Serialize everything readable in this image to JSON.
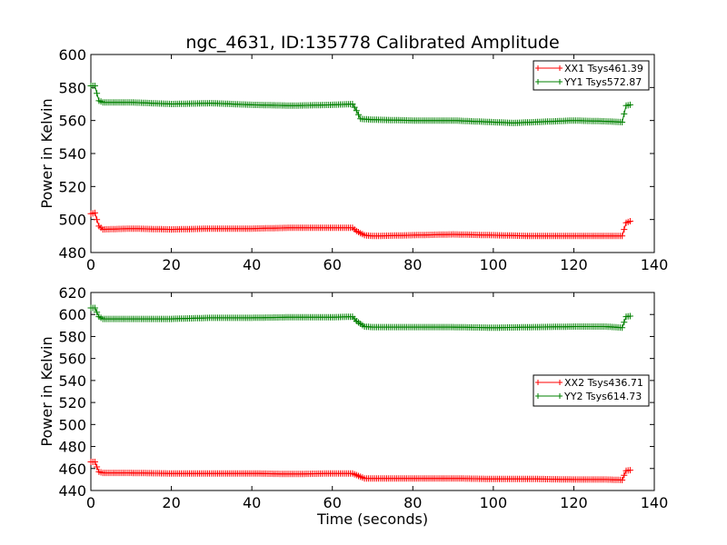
{
  "figure": {
    "title": "ngc_4631, ID:135778 Calibrated Amplitude",
    "xlabel": "Time (seconds)"
  },
  "colors": {
    "xx": "#ff0000",
    "yy": "#008000",
    "axis": "#000000"
  },
  "chart_data": [
    {
      "type": "line",
      "ylabel": "Power in Kelvin",
      "xlim": [
        0,
        140
      ],
      "ylim": [
        480,
        600
      ],
      "xticks": [
        0,
        20,
        40,
        60,
        80,
        100,
        120,
        140
      ],
      "yticks": [
        480,
        500,
        520,
        540,
        560,
        580,
        600
      ],
      "legend": "top-right",
      "marker": "+",
      "series": [
        {
          "name": "XX1 Tsys461.39",
          "color": "#ff0000",
          "points": [
            [
              0,
              503.5
            ],
            [
              1,
              504
            ],
            [
              2,
              496
            ],
            [
              3,
              494
            ],
            [
              10,
              494.5
            ],
            [
              20,
              494
            ],
            [
              30,
              494.5
            ],
            [
              40,
              494.5
            ],
            [
              50,
              495
            ],
            [
              60,
              495
            ],
            [
              65,
              495
            ],
            [
              66,
              493
            ],
            [
              68,
              490.5
            ],
            [
              70,
              490
            ],
            [
              80,
              490.5
            ],
            [
              90,
              491
            ],
            [
              100,
              490.5
            ],
            [
              110,
              490
            ],
            [
              120,
              490
            ],
            [
              128,
              490
            ],
            [
              132,
              490
            ],
            [
              133,
              498
            ],
            [
              134,
              499
            ]
          ]
        },
        {
          "name": "YY1 Tsys572.87",
          "color": "#008000",
          "points": [
            [
              0,
              581
            ],
            [
              1,
              581
            ],
            [
              2,
              572
            ],
            [
              3,
              571
            ],
            [
              10,
              571
            ],
            [
              20,
              570
            ],
            [
              30,
              570.5
            ],
            [
              40,
              569.5
            ],
            [
              50,
              569
            ],
            [
              60,
              569.5
            ],
            [
              65,
              570
            ],
            [
              66,
              566
            ],
            [
              67,
              561
            ],
            [
              70,
              560.5
            ],
            [
              80,
              560
            ],
            [
              90,
              560
            ],
            [
              100,
              559
            ],
            [
              105,
              558.5
            ],
            [
              110,
              559
            ],
            [
              120,
              560
            ],
            [
              128,
              559.5
            ],
            [
              132,
              559
            ],
            [
              133,
              569
            ],
            [
              134,
              569.5
            ]
          ]
        }
      ]
    },
    {
      "type": "line",
      "ylabel": "Power in Kelvin",
      "xlabel": "Time (seconds)",
      "xlim": [
        0,
        140
      ],
      "ylim": [
        440,
        620
      ],
      "xticks": [
        0,
        20,
        40,
        60,
        80,
        100,
        120,
        140
      ],
      "yticks": [
        440,
        460,
        480,
        500,
        520,
        540,
        560,
        580,
        600,
        620
      ],
      "legend": "center-right",
      "marker": "+",
      "series": [
        {
          "name": "XX2 Tsys436.71",
          "color": "#ff0000",
          "points": [
            [
              0,
              466
            ],
            [
              1,
              466
            ],
            [
              2,
              457
            ],
            [
              3,
              456
            ],
            [
              10,
              456
            ],
            [
              20,
              455.5
            ],
            [
              30,
              455.5
            ],
            [
              40,
              455.5
            ],
            [
              50,
              455
            ],
            [
              60,
              455.5
            ],
            [
              65,
              455.5
            ],
            [
              66,
              454
            ],
            [
              68,
              451
            ],
            [
              70,
              451
            ],
            [
              80,
              451
            ],
            [
              90,
              451
            ],
            [
              100,
              450.5
            ],
            [
              110,
              450.5
            ],
            [
              120,
              450
            ],
            [
              128,
              450
            ],
            [
              132,
              449.5
            ],
            [
              133,
              458
            ],
            [
              134,
              458.5
            ]
          ]
        },
        {
          "name": "YY2 Tsys614.73",
          "color": "#008000",
          "points": [
            [
              0,
              606
            ],
            [
              1,
              606
            ],
            [
              2,
              598
            ],
            [
              3,
              596
            ],
            [
              10,
              596
            ],
            [
              20,
              596
            ],
            [
              30,
              597
            ],
            [
              40,
              597
            ],
            [
              50,
              597.5
            ],
            [
              60,
              597.5
            ],
            [
              65,
              598
            ],
            [
              66,
              594
            ],
            [
              68,
              589
            ],
            [
              70,
              588.5
            ],
            [
              80,
              588.5
            ],
            [
              90,
              588.5
            ],
            [
              100,
              588
            ],
            [
              110,
              588.5
            ],
            [
              120,
              589
            ],
            [
              128,
              589
            ],
            [
              132,
              588
            ],
            [
              133,
              598
            ],
            [
              134,
              598.5
            ]
          ]
        }
      ]
    }
  ]
}
